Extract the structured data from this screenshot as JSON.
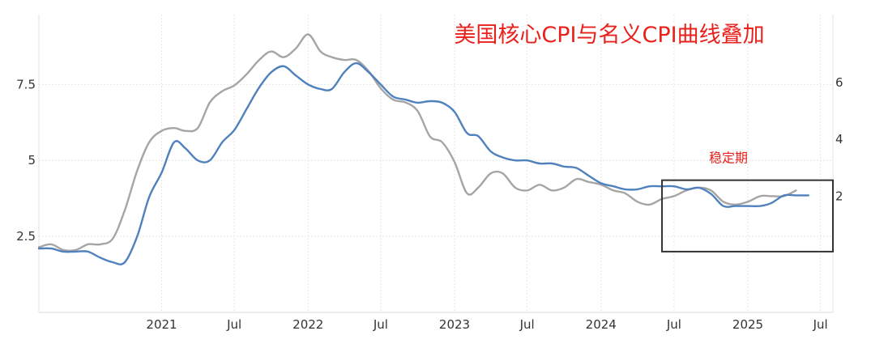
{
  "chart_data": {
    "type": "line",
    "title": "美国核心CPI与名义CPI曲线叠加",
    "title_color": "#e8211c",
    "x_tick_labels": [
      "2021",
      "Jul",
      "2022",
      "Jul",
      "2023",
      "Jul",
      "2024",
      "Jul",
      "2025",
      "Jul"
    ],
    "x_tick_dates": [
      "2021-01-01",
      "2021-07-01",
      "2022-01-01",
      "2022-07-01",
      "2023-01-01",
      "2023-07-01",
      "2024-01-01",
      "2024-07-01",
      "2025-01-01",
      "2025-07-01"
    ],
    "xlim": [
      "2020-03-01",
      "2025-08-01"
    ],
    "y_left": {
      "ticks": [
        "2.5",
        "5",
        "7.5"
      ],
      "tick_values": [
        2.5,
        5,
        7.5
      ],
      "ylim": [
        0,
        9.8
      ]
    },
    "y_right": {
      "ticks": [
        "2",
        "4",
        "6"
      ],
      "tick_values": [
        2,
        4,
        6
      ],
      "ylim": [
        -2.1,
        8.4
      ]
    },
    "grid": true,
    "series": [
      {
        "axis": "left",
        "color": "#4f81bd",
        "points": [
          [
            "2020-03-01",
            2.1
          ],
          [
            "2020-04-01",
            2.1
          ],
          [
            "2020-05-01",
            2.0
          ],
          [
            "2020-06-01",
            2.0
          ],
          [
            "2020-07-01",
            2.0
          ],
          [
            "2020-08-01",
            1.8
          ],
          [
            "2020-09-01",
            1.65
          ],
          [
            "2020-10-01",
            1.65
          ],
          [
            "2020-11-01",
            2.5
          ],
          [
            "2020-12-01",
            3.8
          ],
          [
            "2021-01-01",
            4.6
          ],
          [
            "2021-02-01",
            5.6
          ],
          [
            "2021-03-01",
            5.4
          ],
          [
            "2021-04-01",
            5.0
          ],
          [
            "2021-05-01",
            5.0
          ],
          [
            "2021-06-01",
            5.6
          ],
          [
            "2021-07-01",
            6.0
          ],
          [
            "2021-08-01",
            6.7
          ],
          [
            "2021-09-01",
            7.4
          ],
          [
            "2021-10-01",
            7.9
          ],
          [
            "2021-11-01",
            8.1
          ],
          [
            "2021-12-01",
            7.8
          ],
          [
            "2022-01-01",
            7.5
          ],
          [
            "2022-02-01",
            7.35
          ],
          [
            "2022-03-01",
            7.35
          ],
          [
            "2022-04-01",
            7.9
          ],
          [
            "2022-05-01",
            8.2
          ],
          [
            "2022-06-01",
            7.9
          ],
          [
            "2022-07-01",
            7.5
          ],
          [
            "2022-08-01",
            7.1
          ],
          [
            "2022-09-01",
            7.0
          ],
          [
            "2022-10-01",
            6.9
          ],
          [
            "2022-11-01",
            6.95
          ],
          [
            "2022-12-01",
            6.9
          ],
          [
            "2023-01-01",
            6.6
          ],
          [
            "2023-02-01",
            5.9
          ],
          [
            "2023-03-01",
            5.8
          ],
          [
            "2023-04-01",
            5.3
          ],
          [
            "2023-05-01",
            5.1
          ],
          [
            "2023-06-01",
            5.0
          ],
          [
            "2023-07-01",
            5.0
          ],
          [
            "2023-08-01",
            4.9
          ],
          [
            "2023-09-01",
            4.9
          ],
          [
            "2023-10-01",
            4.8
          ],
          [
            "2023-11-01",
            4.75
          ],
          [
            "2023-12-01",
            4.5
          ],
          [
            "2024-01-01",
            4.25
          ],
          [
            "2024-02-01",
            4.15
          ],
          [
            "2024-03-01",
            4.05
          ],
          [
            "2024-04-01",
            4.05
          ],
          [
            "2024-05-01",
            4.15
          ],
          [
            "2024-06-01",
            4.15
          ],
          [
            "2024-07-01",
            4.15
          ],
          [
            "2024-08-01",
            4.05
          ],
          [
            "2024-09-01",
            4.1
          ],
          [
            "2024-10-01",
            3.9
          ],
          [
            "2024-11-01",
            3.5
          ],
          [
            "2024-12-01",
            3.5
          ],
          [
            "2025-01-01",
            3.5
          ],
          [
            "2025-02-01",
            3.5
          ],
          [
            "2025-03-01",
            3.6
          ],
          [
            "2025-04-01",
            3.85
          ],
          [
            "2025-05-01",
            3.85
          ],
          [
            "2025-06-01",
            3.85
          ]
        ]
      },
      {
        "axis": "right",
        "color": "#a5a5a5",
        "points": [
          [
            "2020-03-01",
            0.2
          ],
          [
            "2020-04-01",
            0.3
          ],
          [
            "2020-05-01",
            0.1
          ],
          [
            "2020-06-01",
            0.1
          ],
          [
            "2020-07-01",
            0.3
          ],
          [
            "2020-08-01",
            0.3
          ],
          [
            "2020-09-01",
            0.5
          ],
          [
            "2020-10-01",
            1.5
          ],
          [
            "2020-11-01",
            2.9
          ],
          [
            "2020-12-01",
            3.9
          ],
          [
            "2021-01-01",
            4.3
          ],
          [
            "2021-02-01",
            4.4
          ],
          [
            "2021-03-01",
            4.3
          ],
          [
            "2021-04-01",
            4.4
          ],
          [
            "2021-05-01",
            5.3
          ],
          [
            "2021-06-01",
            5.7
          ],
          [
            "2021-07-01",
            5.9
          ],
          [
            "2021-08-01",
            6.3
          ],
          [
            "2021-09-01",
            6.8
          ],
          [
            "2021-10-01",
            7.1
          ],
          [
            "2021-11-01",
            6.9
          ],
          [
            "2021-12-01",
            7.2
          ],
          [
            "2022-01-01",
            7.7
          ],
          [
            "2022-02-01",
            7.1
          ],
          [
            "2022-03-01",
            6.9
          ],
          [
            "2022-04-01",
            6.8
          ],
          [
            "2022-05-01",
            6.8
          ],
          [
            "2022-06-01",
            6.4
          ],
          [
            "2022-07-01",
            5.8
          ],
          [
            "2022-08-01",
            5.4
          ],
          [
            "2022-09-01",
            5.3
          ],
          [
            "2022-10-01",
            5.0
          ],
          [
            "2022-11-01",
            4.1
          ],
          [
            "2022-12-01",
            3.9
          ],
          [
            "2023-01-01",
            3.2
          ],
          [
            "2023-02-01",
            2.1
          ],
          [
            "2023-03-01",
            2.3
          ],
          [
            "2023-04-01",
            2.8
          ],
          [
            "2023-05-01",
            2.8
          ],
          [
            "2023-06-01",
            2.3
          ],
          [
            "2023-07-01",
            2.2
          ],
          [
            "2023-08-01",
            2.4
          ],
          [
            "2023-09-01",
            2.2
          ],
          [
            "2023-10-01",
            2.3
          ],
          [
            "2023-11-01",
            2.6
          ],
          [
            "2023-12-01",
            2.5
          ],
          [
            "2024-01-01",
            2.4
          ],
          [
            "2024-02-01",
            2.2
          ],
          [
            "2024-03-01",
            2.1
          ],
          [
            "2024-04-01",
            1.8
          ],
          [
            "2024-05-01",
            1.7
          ],
          [
            "2024-06-01",
            1.9
          ],
          [
            "2024-07-01",
            2.0
          ],
          [
            "2024-08-01",
            2.2
          ],
          [
            "2024-09-01",
            2.3
          ],
          [
            "2024-10-01",
            2.2
          ],
          [
            "2024-11-01",
            1.8
          ],
          [
            "2024-12-01",
            1.7
          ],
          [
            "2025-01-01",
            1.8
          ],
          [
            "2025-02-01",
            2.0
          ],
          [
            "2025-03-01",
            2.0
          ],
          [
            "2025-04-01",
            2.0
          ],
          [
            "2025-05-01",
            2.2
          ]
        ]
      }
    ],
    "annotation": {
      "text": "稳定期",
      "color": "#e8211c",
      "box_from": "2024-06-01",
      "box_to": "2025-08-01",
      "box_y_range": [
        2.0,
        4.35
      ]
    }
  }
}
